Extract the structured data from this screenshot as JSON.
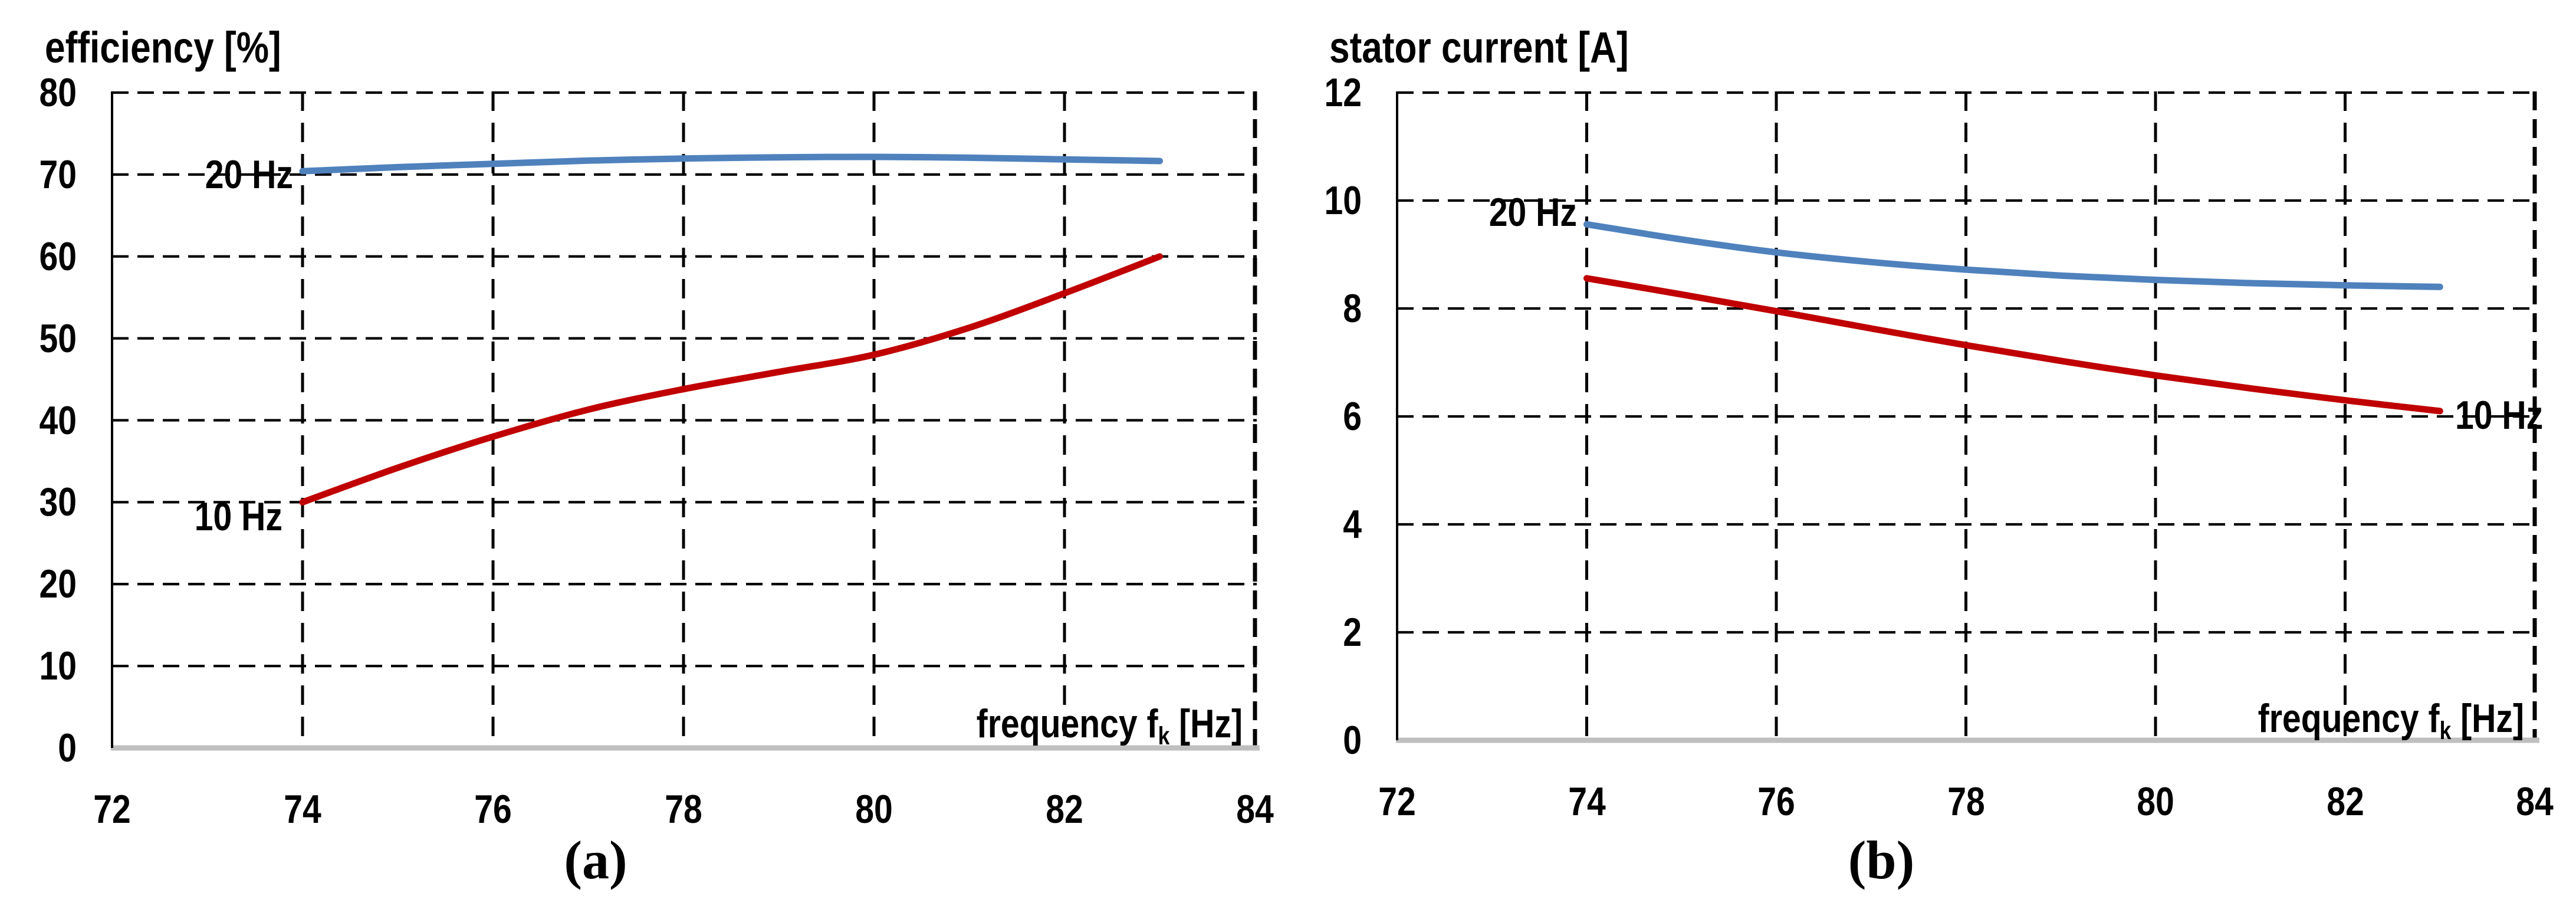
{
  "figure": {
    "background": "#ffffff",
    "grid_color": "#000000",
    "axis_color": "#bfbfbf",
    "text_color": "#000000"
  },
  "chart_data": [
    {
      "type": "line",
      "panel": "a",
      "caption": "(a)",
      "title": "efficiency [%]",
      "xlabel_pre": "frequency f",
      "xlabel_sub": "k",
      "xlabel_post": " [Hz]",
      "xlim": [
        72,
        84
      ],
      "ylim": [
        0,
        80
      ],
      "grid": "dashed both axes",
      "legend_position": "inline labels at curve ends",
      "x_ticks": [
        "72",
        "74",
        "76",
        "78",
        "80",
        "82",
        "84"
      ],
      "y_ticks": [
        "80",
        "70",
        "60",
        "50",
        "40",
        "30",
        "20",
        "10",
        "0"
      ],
      "x": [
        74,
        75,
        76,
        77,
        78,
        79,
        80,
        81,
        82,
        83
      ],
      "series": [
        {
          "name": "20 Hz",
          "color": "#4f81bd",
          "values": [
            70.4,
            70.9,
            71.3,
            71.7,
            71.95,
            72.1,
            72.15,
            72.05,
            71.85,
            71.65
          ]
        },
        {
          "name": "10 Hz",
          "color": "#c00000",
          "values": [
            30.0,
            34.2,
            38.0,
            41.3,
            43.8,
            45.9,
            48.0,
            51.3,
            55.5,
            60.0
          ]
        }
      ]
    },
    {
      "type": "line",
      "panel": "b",
      "caption": "(b)",
      "title": "stator current [A]",
      "xlabel_pre": "frequency f",
      "xlabel_sub": "k",
      "xlabel_post": " [Hz]",
      "xlim": [
        72,
        84
      ],
      "ylim": [
        0,
        12
      ],
      "grid": "dashed both axes",
      "legend_position": "inline labels at curve ends",
      "x_ticks": [
        "72",
        "74",
        "76",
        "78",
        "80",
        "82",
        "84"
      ],
      "y_ticks": [
        "12",
        "10",
        "8",
        "6",
        "4",
        "2",
        "0"
      ],
      "x": [
        74,
        75,
        76,
        77,
        78,
        79,
        80,
        81,
        82,
        83
      ],
      "series": [
        {
          "name": "20 Hz",
          "color": "#4f81bd",
          "values": [
            9.56,
            9.28,
            9.04,
            8.86,
            8.72,
            8.61,
            8.53,
            8.47,
            8.43,
            8.4
          ]
        },
        {
          "name": "10 Hz",
          "color": "#c00000",
          "values": [
            8.56,
            8.26,
            7.95,
            7.63,
            7.32,
            7.03,
            6.76,
            6.52,
            6.3,
            6.1
          ]
        }
      ]
    }
  ]
}
